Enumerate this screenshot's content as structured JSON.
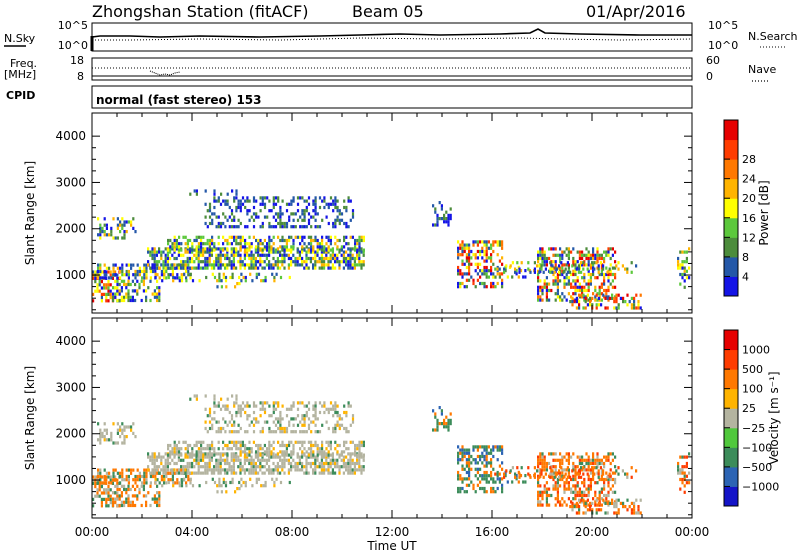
{
  "header": {
    "title": "Zhongshan Station (fitACF)",
    "beam": "Beam 05",
    "date": "01/Apr/2016"
  },
  "top_panels": {
    "nsky_label": "N.Sky",
    "nsky_ticks": [
      "10^5",
      "10^0"
    ],
    "nsearch_label": "N.Search",
    "nsearch_ticks": [
      "10^5",
      "10^0"
    ],
    "freq_label_1": "Freq.",
    "freq_label_2": "[MHz]",
    "freq_ticks": [
      "18",
      "8"
    ],
    "nave_label": "Nave",
    "nave_ticks": [
      "60",
      "0"
    ],
    "cpid_label": "CPID",
    "cpid_text": "normal (fast stereo) 153"
  },
  "chart_data": [
    {
      "type": "heatmap",
      "title": "",
      "xlabel": "Time UT",
      "ylabel": "Slant Range [km]",
      "x_ticks": [
        "00:00",
        "04:00",
        "08:00",
        "12:00",
        "16:00",
        "20:00",
        "00:00"
      ],
      "y_ticks": [
        "1000",
        "2000",
        "3000",
        "4000"
      ],
      "xlim": [
        0,
        24
      ],
      "ylim": [
        180,
        4500
      ],
      "colorbar": {
        "label": "Power [dB]",
        "ticks": [
          "4",
          "8",
          "12",
          "16",
          "20",
          "24",
          "28"
        ],
        "colors": [
          "#1414e6",
          "#2458a8",
          "#4c8c3c",
          "#5cc83c",
          "#ffff00",
          "#ffb400",
          "#ff7800",
          "#ff3c00",
          "#e60000"
        ]
      }
    },
    {
      "type": "heatmap",
      "title": "",
      "xlabel": "Time UT",
      "ylabel": "Slant Range [km]",
      "x_ticks": [
        "00:00",
        "04:00",
        "08:00",
        "12:00",
        "16:00",
        "20:00",
        "00:00"
      ],
      "y_ticks": [
        "1000",
        "2000",
        "3000",
        "4000"
      ],
      "xlim": [
        0,
        24
      ],
      "ylim": [
        180,
        4500
      ],
      "colorbar": {
        "label": "Velocity [m s⁻¹]",
        "ticks": [
          "1000",
          "500",
          "100",
          "25",
          "−25",
          "−100",
          "−500",
          "−1000"
        ],
        "colors": [
          "#1414c8",
          "#2c64b4",
          "#3c8c5a",
          "#50c83c",
          "#b4b4a0",
          "#ffb400",
          "#ff7800",
          "#ff3c00",
          "#e60000"
        ]
      }
    }
  ]
}
